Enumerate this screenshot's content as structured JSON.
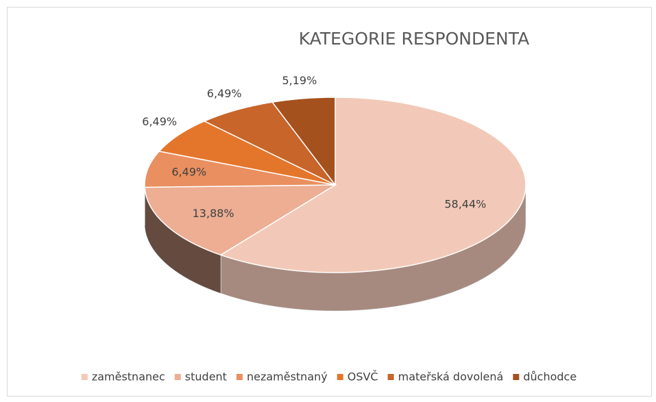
{
  "chart_data": {
    "type": "pie",
    "title": "KATEGORIE RESPONDENTA",
    "categories": [
      "zaměstnanec",
      "student",
      "nezaměstnaný",
      "OSVČ",
      "mateřská dovolená",
      "důchodce"
    ],
    "values": [
      58.44,
      13.88,
      6.49,
      6.49,
      6.49,
      5.19
    ],
    "value_labels": [
      "58,44%",
      "13,88%",
      "6,49%",
      "6,49%",
      "6,49%",
      "5,19%"
    ],
    "colors": [
      "#f2c9b8",
      "#edae94",
      "#ea8f60",
      "#e4762c",
      "#c8652a",
      "#a5511e"
    ],
    "legend": "bottom"
  }
}
